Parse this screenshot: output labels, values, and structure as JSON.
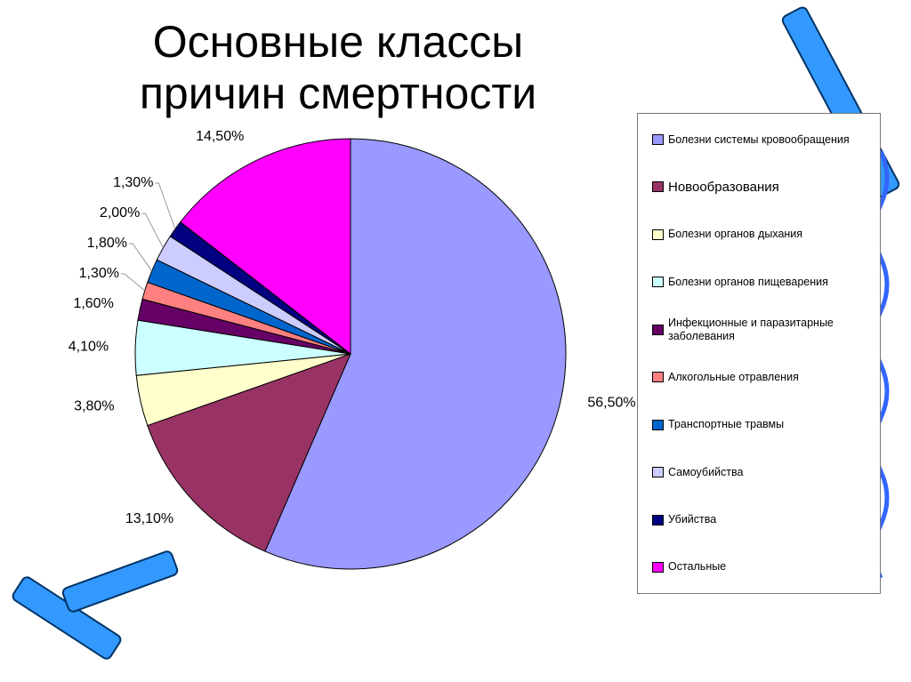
{
  "chart_data": {
    "type": "pie",
    "title": "Основные классы причин смертности",
    "categories": [
      "Болезни системы кровообращения",
      "Новообразования",
      "Болезни органов дыхания",
      "Болезни органов пищеварения",
      "Инфекционные и паразитарные заболевания",
      "Алкогольные отравления",
      "Транспортные травмы",
      "Самоубийства",
      "Убийства",
      "Остальные"
    ],
    "values": [
      56.5,
      13.1,
      3.8,
      4.1,
      1.6,
      1.3,
      1.8,
      2.0,
      1.3,
      14.5
    ],
    "value_labels": [
      "56,50%",
      "13,10%",
      "3,80%",
      "4,10%",
      "1,60%",
      "1,30%",
      "1,80%",
      "2,00%",
      "1,30%",
      "14,50%"
    ],
    "colors": [
      "#9999ff",
      "#993366",
      "#ffffcc",
      "#ccffff",
      "#660066",
      "#ff8080",
      "#0066cc",
      "#ccccff",
      "#000080",
      "#ff00ff"
    ],
    "legend": "right"
  }
}
